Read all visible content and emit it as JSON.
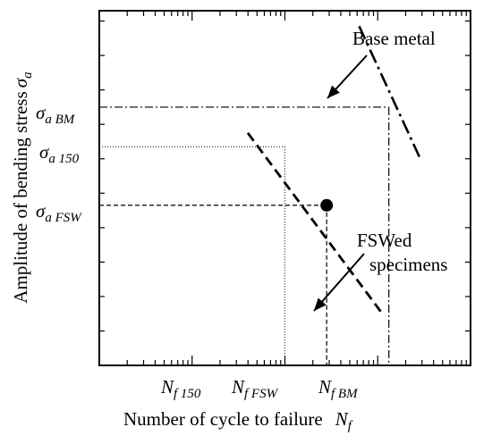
{
  "chart_data": {
    "type": "line",
    "xlabel": "Number of cycle to failure",
    "xlabel_symbol": {
      "base": "N",
      "sub": "f"
    },
    "ylabel": "Amplitude of bending stress",
    "ylabel_symbol": {
      "base": "σ",
      "sub": "a"
    },
    "x_scale": "log",
    "grid": false,
    "x_ticks": [
      {
        "base": "N",
        "sub": "f 150",
        "value": 5.0
      },
      {
        "base": "N",
        "sub": "f FSW",
        "value": 5.45
      },
      {
        "base": "N",
        "sub": "f BM",
        "value": 6.12
      }
    ],
    "y_ticks": [
      {
        "base": "σ",
        "sub": "a BM",
        "value": 7.5
      },
      {
        "base": "σ",
        "sub": "a 150",
        "value": 6.35
      },
      {
        "base": "σ",
        "sub": "a FSW",
        "value": 4.65
      }
    ],
    "series": [
      {
        "name": "Base metal",
        "style": "dash-dot",
        "x": [
          5.8,
          6.45
        ],
        "y": [
          9.85,
          6.05
        ]
      },
      {
        "name": "FSWed specimens",
        "style": "dashed",
        "x": [
          4.6,
          6.05
        ],
        "y": [
          6.75,
          1.5
        ]
      }
    ],
    "point": {
      "x": 5.45,
      "y": 4.65
    },
    "annotations": [
      {
        "text": "Base metal",
        "target": "Base metal"
      },
      {
        "lines": [
          "FSWed",
          "specimens"
        ],
        "target": "FSWed specimens"
      }
    ],
    "xlim": [
      3.0,
      7.0
    ],
    "ylim": [
      0,
      10.3
    ],
    "colors": {
      "axis": "#000000",
      "lines": "#000000"
    }
  }
}
